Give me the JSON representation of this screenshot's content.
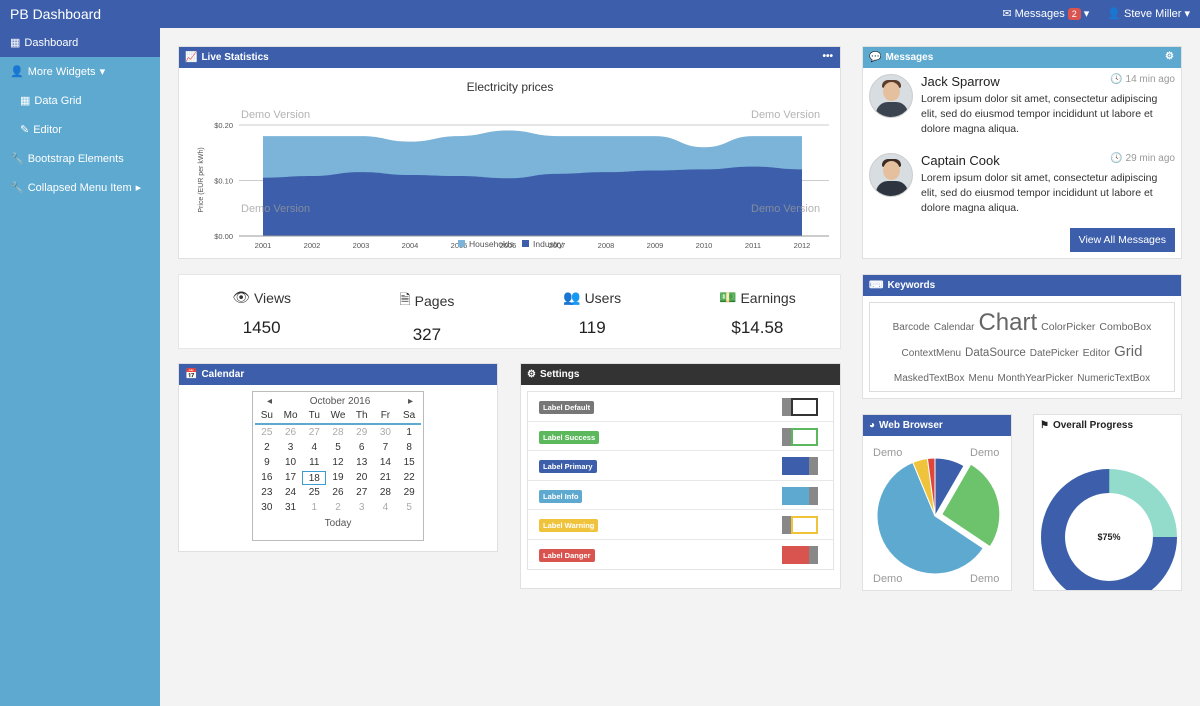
{
  "app": {
    "title": "PB Dashboard"
  },
  "topnav": {
    "messages_label": "Messages",
    "messages_count": "2",
    "user": "Steve Miller"
  },
  "sidebar": {
    "items": [
      {
        "label": "Dashboard",
        "icon": "grid-icon"
      },
      {
        "label": "More Widgets",
        "icon": "user-icon"
      },
      {
        "label": "Data Grid",
        "icon": "table-icon"
      },
      {
        "label": "Editor",
        "icon": "edit-icon"
      },
      {
        "label": "Bootstrap Elements",
        "icon": "wrench-icon"
      },
      {
        "label": "Collapsed Menu Item",
        "icon": "wrench-icon"
      }
    ]
  },
  "live": {
    "title": "Live Statistics",
    "menu": "•••"
  },
  "chart_data": {
    "type": "area",
    "title": "Electricity prices",
    "ylabel": "Price (EUR per kWh)",
    "xlabel": "",
    "ylim": [
      0,
      0.2
    ],
    "yticks": [
      "$0.00",
      "$0.10",
      "$0.20"
    ],
    "categories": [
      "2001",
      "2002",
      "2003",
      "2004",
      "2005",
      "2006",
      "2007",
      "2008",
      "2009",
      "2010",
      "2011",
      "2012"
    ],
    "series": [
      {
        "name": "Households",
        "color": "#7bb4d8",
        "values": [
          0.18,
          0.18,
          0.18,
          0.17,
          0.18,
          0.19,
          0.18,
          0.18,
          0.18,
          0.16,
          0.18,
          0.18
        ]
      },
      {
        "name": "Industry",
        "color": "#3d5fab",
        "values": [
          0.105,
          0.108,
          0.115,
          0.11,
          0.108,
          0.104,
          0.112,
          0.115,
          0.118,
          0.12,
          0.125,
          0.12
        ]
      }
    ],
    "watermarks": [
      "Demo Version",
      "Demo Version",
      "Demo Version",
      "Demo Version"
    ],
    "grid": true,
    "legend": "bottom"
  },
  "stats": [
    {
      "label": "Views",
      "value": "1450",
      "icon": "eye-icon"
    },
    {
      "label": "Pages",
      "value": "327",
      "icon": "file-icon"
    },
    {
      "label": "Users",
      "value": "119",
      "icon": "users-icon"
    },
    {
      "label": "Earnings",
      "value": "$14.58",
      "icon": "money-icon"
    }
  ],
  "messages": {
    "title": "Messages",
    "items": [
      {
        "name": "Jack Sparrow",
        "time": "14 min ago",
        "text": "Lorem ipsum dolor sit amet, consectetur adipiscing elit, sed do eiusmod tempor incididunt ut labore et dolore magna aliqua."
      },
      {
        "name": "Captain Cook",
        "time": "29 min ago",
        "text": "Lorem ipsum dolor sit amet, consectetur adipiscing elit, sed do eiusmod tempor incididunt ut labore et dolore magna aliqua."
      }
    ],
    "view_all": "View All Messages"
  },
  "keywords": {
    "title": "Keywords",
    "items": [
      {
        "text": "Barcode",
        "size": 10
      },
      {
        "text": "Calendar",
        "size": 10
      },
      {
        "text": "Chart",
        "size": 24
      },
      {
        "text": "ColorPicker",
        "size": 10.5
      },
      {
        "text": "ComboBox",
        "size": 10.5
      },
      {
        "text": "ContextMenu",
        "size": 10
      },
      {
        "text": "DataSource",
        "size": 11.5
      },
      {
        "text": "DatePicker",
        "size": 10
      },
      {
        "text": "Editor",
        "size": 10.5
      },
      {
        "text": "Grid",
        "size": 15
      },
      {
        "text": "MaskedTextBox",
        "size": 10
      },
      {
        "text": "Menu",
        "size": 10
      },
      {
        "text": "MonthYearPicker",
        "size": 10
      },
      {
        "text": "NumericTextBox",
        "size": 10
      }
    ]
  },
  "calendar": {
    "title": "Calendar",
    "month": "October 2016",
    "prev": "◂",
    "next": "▸",
    "weekdays": [
      "Su",
      "Mo",
      "Tu",
      "We",
      "Th",
      "Fr",
      "Sa"
    ],
    "days": [
      "25",
      "26",
      "27",
      "28",
      "29",
      "30",
      "1",
      "2",
      "3",
      "4",
      "5",
      "6",
      "7",
      "8",
      "9",
      "10",
      "11",
      "12",
      "13",
      "14",
      "15",
      "16",
      "17",
      "18",
      "19",
      "20",
      "21",
      "22",
      "23",
      "24",
      "25",
      "26",
      "27",
      "28",
      "29",
      "30",
      "31",
      "1",
      "2",
      "3",
      "4",
      "5"
    ],
    "selected": "17",
    "today": "Today"
  },
  "settings": {
    "title": "Settings",
    "items": [
      {
        "label": "Label Default",
        "color": "#777777",
        "on": false
      },
      {
        "label": "Label Success",
        "color": "#5cb85c",
        "on": false
      },
      {
        "label": "Label Primary",
        "color": "#3d5fab",
        "on": true
      },
      {
        "label": "Label Info",
        "color": "#5ea9d0",
        "on": true
      },
      {
        "label": "Label Warning",
        "color": "#f0c33c",
        "on": false
      },
      {
        "label": "Label Danger",
        "color": "#d9534f",
        "on": true
      }
    ]
  },
  "browser": {
    "title": "Web Browser",
    "watermark": "Demo",
    "slices": [
      {
        "value": 57,
        "color": "#5ea9d0"
      },
      {
        "value": 25,
        "color": "#6cc36b"
      },
      {
        "value": 8,
        "color": "#3d5fab"
      },
      {
        "value": 2,
        "color": "#e0453b"
      },
      {
        "value": 4,
        "color": "#f0c33c"
      }
    ]
  },
  "progress": {
    "title": "Overall Progress",
    "value": 75,
    "label": "$75%",
    "colors": [
      "#3d5fab",
      "#93dccc"
    ]
  }
}
